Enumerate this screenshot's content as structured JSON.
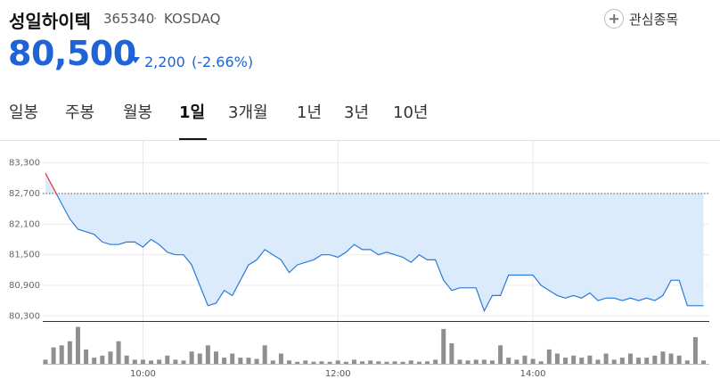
{
  "header": {
    "name": "성일하이텍",
    "code": "365340",
    "market": "KOSDAQ",
    "favorite": "관심종목",
    "price": "80,500",
    "change": "2,200",
    "change_pct": "(-2.66%)"
  },
  "tabs": [
    "일봉",
    "주봉",
    "월봉",
    "1일",
    "3개월",
    "1년",
    "3년",
    "10년"
  ],
  "active_tab": 3,
  "chart_data": {
    "type": "line",
    "x": [
      "09:00",
      "09:05",
      "09:10",
      "09:15",
      "09:20",
      "09:25",
      "09:30",
      "09:35",
      "09:40",
      "09:45",
      "09:50",
      "09:55",
      "10:00",
      "10:05",
      "10:10",
      "10:15",
      "10:20",
      "10:25",
      "10:30",
      "10:35",
      "10:40",
      "10:45",
      "10:50",
      "10:55",
      "11:00",
      "11:05",
      "11:10",
      "11:15",
      "11:20",
      "11:25",
      "11:30",
      "11:35",
      "11:40",
      "11:45",
      "11:50",
      "11:55",
      "12:00",
      "12:05",
      "12:10",
      "12:15",
      "12:20",
      "12:25",
      "12:30",
      "12:35",
      "12:40",
      "12:45",
      "12:50",
      "12:55",
      "13:00",
      "13:05",
      "13:10",
      "13:15",
      "13:20",
      "13:25",
      "13:30",
      "13:35",
      "13:40",
      "13:45",
      "13:50",
      "13:55",
      "14:00",
      "14:05",
      "14:10",
      "14:15",
      "14:20",
      "14:25",
      "14:30",
      "14:35",
      "14:40",
      "14:45",
      "14:50",
      "14:55",
      "15:00",
      "15:05",
      "15:10",
      "15:15",
      "15:20",
      "15:25",
      "15:30",
      "15:35",
      "15:40",
      "15:45"
    ],
    "values": [
      83100,
      82800,
      82500,
      82200,
      82000,
      81950,
      81900,
      81750,
      81700,
      81700,
      81750,
      81750,
      81650,
      81800,
      81700,
      81550,
      81500,
      81500,
      81300,
      80900,
      80500,
      80550,
      80800,
      80700,
      81000,
      81300,
      81400,
      81600,
      81500,
      81400,
      81150,
      81300,
      81350,
      81400,
      81500,
      81500,
      81450,
      81550,
      81700,
      81600,
      81600,
      81500,
      81550,
      81500,
      81450,
      81350,
      81500,
      81400,
      81400,
      81000,
      80800,
      80850,
      80850,
      80850,
      80400,
      80700,
      80700,
      81100,
      81100,
      81100,
      81100,
      80900,
      80800,
      80700,
      80650,
      80700,
      80650,
      80750,
      80600,
      80650,
      80650,
      80600,
      80650,
      80600,
      80650,
      80600,
      80700,
      81000,
      81000,
      80500,
      80500,
      80500
    ],
    "volume": [
      10,
      40,
      45,
      55,
      90,
      35,
      15,
      20,
      30,
      55,
      20,
      10,
      10,
      8,
      10,
      20,
      10,
      8,
      30,
      25,
      45,
      30,
      15,
      25,
      15,
      15,
      12,
      45,
      8,
      25,
      8,
      5,
      8,
      5,
      6,
      5,
      8,
      5,
      10,
      6,
      8,
      6,
      5,
      6,
      5,
      8,
      5,
      6,
      10,
      85,
      50,
      10,
      8,
      10,
      10,
      8,
      45,
      15,
      10,
      20,
      12,
      6,
      35,
      25,
      15,
      20,
      15,
      20,
      10,
      25,
      10,
      15,
      25,
      15,
      15,
      20,
      30,
      25,
      20,
      8,
      65,
      8
    ],
    "baseline": 82700,
    "xlim": [
      "09:00",
      "15:48"
    ],
    "xticks": [
      "10:00",
      "12:00",
      "14:00"
    ],
    "ylim": [
      80200,
      83750
    ],
    "yticks": [
      {
        "value": 80300,
        "label": "80,300"
      },
      {
        "value": 80900,
        "label": "80,900"
      },
      {
        "value": 81500,
        "label": "81,500"
      },
      {
        "value": 82100,
        "label": "82,100"
      },
      {
        "value": 82700,
        "label": "82,700"
      },
      {
        "value": 83300,
        "label": "83,300"
      }
    ],
    "volume_ylim": [
      0,
      100
    ],
    "grid": true,
    "up_color": "#e8312f",
    "down_color": "#2a7ad8",
    "fill_color": "#dcebfb",
    "volume_color": "#8f8f8f"
  }
}
